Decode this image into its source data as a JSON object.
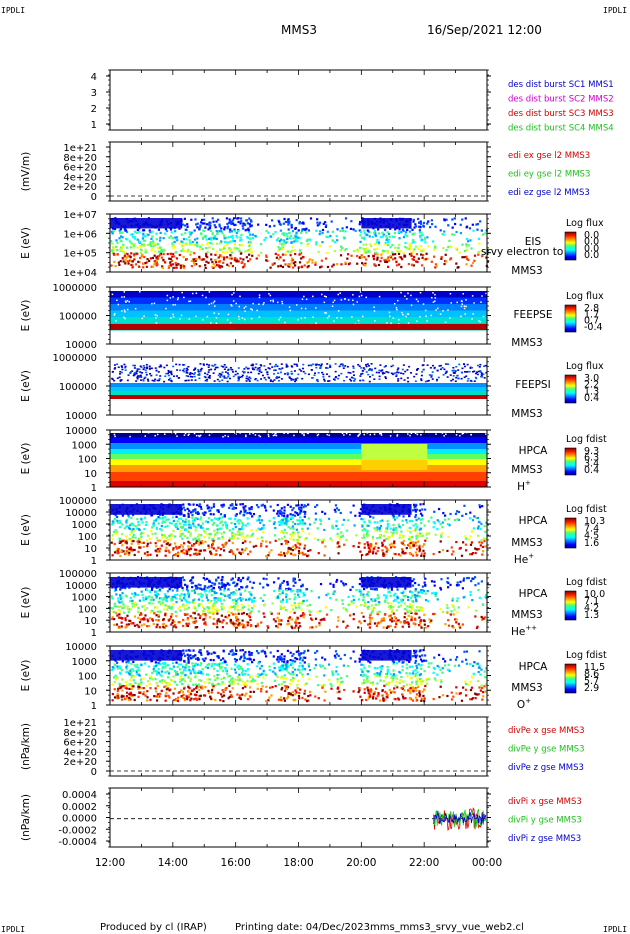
{
  "header": {
    "corner_left_top": "IPDLI",
    "corner_right_top": "IPDLI",
    "corner_left_bottom": "IPDLI",
    "corner_right_bottom": "IPDLI",
    "title": "MMS3",
    "date": "16/Sep/2021 12:00"
  },
  "footer": {
    "produced": "Produced by cl (IRAP)",
    "printed": "Printing date: 04/Dec/2023",
    "file": "mms_mms3_srvy_vue_web2.cl"
  },
  "colors": {
    "red": "#d40000",
    "green": "#20c020",
    "blue": "#0000cc",
    "magenta": "#d000d0"
  },
  "chart_data": [
    {
      "type": "line",
      "id": "burst",
      "ylabel": "",
      "ylim": [
        0.5,
        4.5
      ],
      "yticks": [
        "1",
        "2",
        "3",
        "4"
      ],
      "legend": [
        {
          "text": "des dist burst SC1 MMS1",
          "color": "#0000cc"
        },
        {
          "text": "des dist burst SC2 MMS2",
          "color": "#d000d0"
        },
        {
          "text": "des dist burst SC3 MMS3",
          "color": "#d40000"
        },
        {
          "text": "des dist burst SC4 MMS4",
          "color": "#20c020"
        }
      ]
    },
    {
      "type": "line",
      "id": "edi",
      "ylabel": "(mV/m)",
      "yticks": [
        "0",
        "2e+20",
        "4e+20",
        "6e+20",
        "8e+20",
        "1e+21"
      ],
      "ylim": [
        0,
        1e+21
      ],
      "legend": [
        {
          "text": "edi ex gse l2 MMS3",
          "color": "#d40000"
        },
        {
          "text": "edi ey gse l2 MMS3",
          "color": "#20c020"
        },
        {
          "text": "edi ez gse l2 MMS3",
          "color": "#0000cc"
        }
      ]
    },
    {
      "type": "heatmap",
      "id": "eis",
      "ylabel": "E (eV)",
      "yticks": [
        "1e+04",
        "1e+05",
        "1e+06",
        "1e+07"
      ],
      "instrument": "EIS",
      "probe": "MMS3",
      "overlay_text": "srvy electron to",
      "cbar_title": "Log flux",
      "cbar_values": [
        "0.0",
        "0.0",
        "0.0",
        "0.0"
      ]
    },
    {
      "type": "heatmap",
      "id": "feepse",
      "ylabel": "E (eV)",
      "yticks": [
        "10000",
        "100000",
        "1000000"
      ],
      "instrument": "FEEPSE",
      "probe": "MMS3",
      "cbar_title": "Log flux",
      "cbar_values": [
        "2.8",
        "1.7",
        "0.7",
        "-0.4"
      ]
    },
    {
      "type": "heatmap",
      "id": "feepsi",
      "ylabel": "E (eV)",
      "yticks": [
        "10000",
        "100000",
        "1000000"
      ],
      "instrument": "FEEPSI",
      "probe": "MMS3",
      "cbar_title": "Log flux",
      "cbar_values": [
        "3.0",
        "2.2",
        "1.3",
        "0.4"
      ]
    },
    {
      "type": "heatmap",
      "id": "hpca_h",
      "ylabel": "E (eV)",
      "yticks": [
        "1",
        "10",
        "100",
        "1000",
        "10000"
      ],
      "instrument": "HPCA",
      "probe": "MMS3",
      "species": "H",
      "species_sup": "+",
      "cbar_title": "Log fdist",
      "cbar_values": [
        "9.3",
        "6.3",
        "3.4",
        "0.4"
      ]
    },
    {
      "type": "heatmap",
      "id": "hpca_he",
      "ylabel": "E (eV)",
      "yticks": [
        "1",
        "10",
        "100",
        "1000",
        "10000",
        "100000"
      ],
      "instrument": "HPCA",
      "probe": "MMS3",
      "species": "He",
      "species_sup": "+",
      "cbar_title": "Log fdist",
      "cbar_values": [
        "10.3",
        "7.4",
        "4.5",
        "1.6"
      ]
    },
    {
      "type": "heatmap",
      "id": "hpca_hepp",
      "ylabel": "E (eV)",
      "yticks": [
        "1",
        "10",
        "100",
        "1000",
        "10000",
        "100000"
      ],
      "instrument": "HPCA",
      "probe": "MMS3",
      "species": "He",
      "species_sup": "++",
      "cbar_title": "Log fdist",
      "cbar_values": [
        "10.0",
        "7.1",
        "4.2",
        "1.3"
      ]
    },
    {
      "type": "heatmap",
      "id": "hpca_o",
      "ylabel": "E (eV)",
      "yticks": [
        "1",
        "10",
        "100",
        "1000",
        "10000"
      ],
      "instrument": "HPCA",
      "probe": "MMS3",
      "species": "O",
      "species_sup": "+",
      "cbar_title": "Log fdist",
      "cbar_values": [
        "11.5",
        "8.6",
        "5.7",
        "2.9"
      ]
    },
    {
      "type": "line",
      "id": "divpe",
      "ylabel": "(nPa/km)",
      "yticks": [
        "0",
        "2e+20",
        "4e+20",
        "6e+20",
        "8e+20",
        "1e+21"
      ],
      "ylim": [
        0,
        1e+21
      ],
      "legend": [
        {
          "text": "divPe x gse MMS3",
          "color": "#d40000"
        },
        {
          "text": "divPe y gse MMS3",
          "color": "#20c020"
        },
        {
          "text": "divPe z gse MMS3",
          "color": "#0000cc"
        }
      ]
    },
    {
      "type": "line",
      "id": "divpi",
      "ylabel": "(nPa/km)",
      "yticks": [
        "-0.0004",
        "-0.0002",
        "0.0000",
        "0.0002",
        "0.0004"
      ],
      "ylim": [
        -0.0005,
        0.0005
      ],
      "legend": [
        {
          "text": "divPi x gse MMS3",
          "color": "#d40000"
        },
        {
          "text": "divPi y gse MMS3",
          "color": "#20c020"
        },
        {
          "text": "divPi z gse MMS3",
          "color": "#0000cc"
        }
      ]
    }
  ],
  "xaxis": {
    "ticks": [
      "12:00",
      "14:00",
      "16:00",
      "18:00",
      "20:00",
      "22:00",
      "00:00"
    ],
    "xlim_hours": [
      12,
      24
    ]
  }
}
